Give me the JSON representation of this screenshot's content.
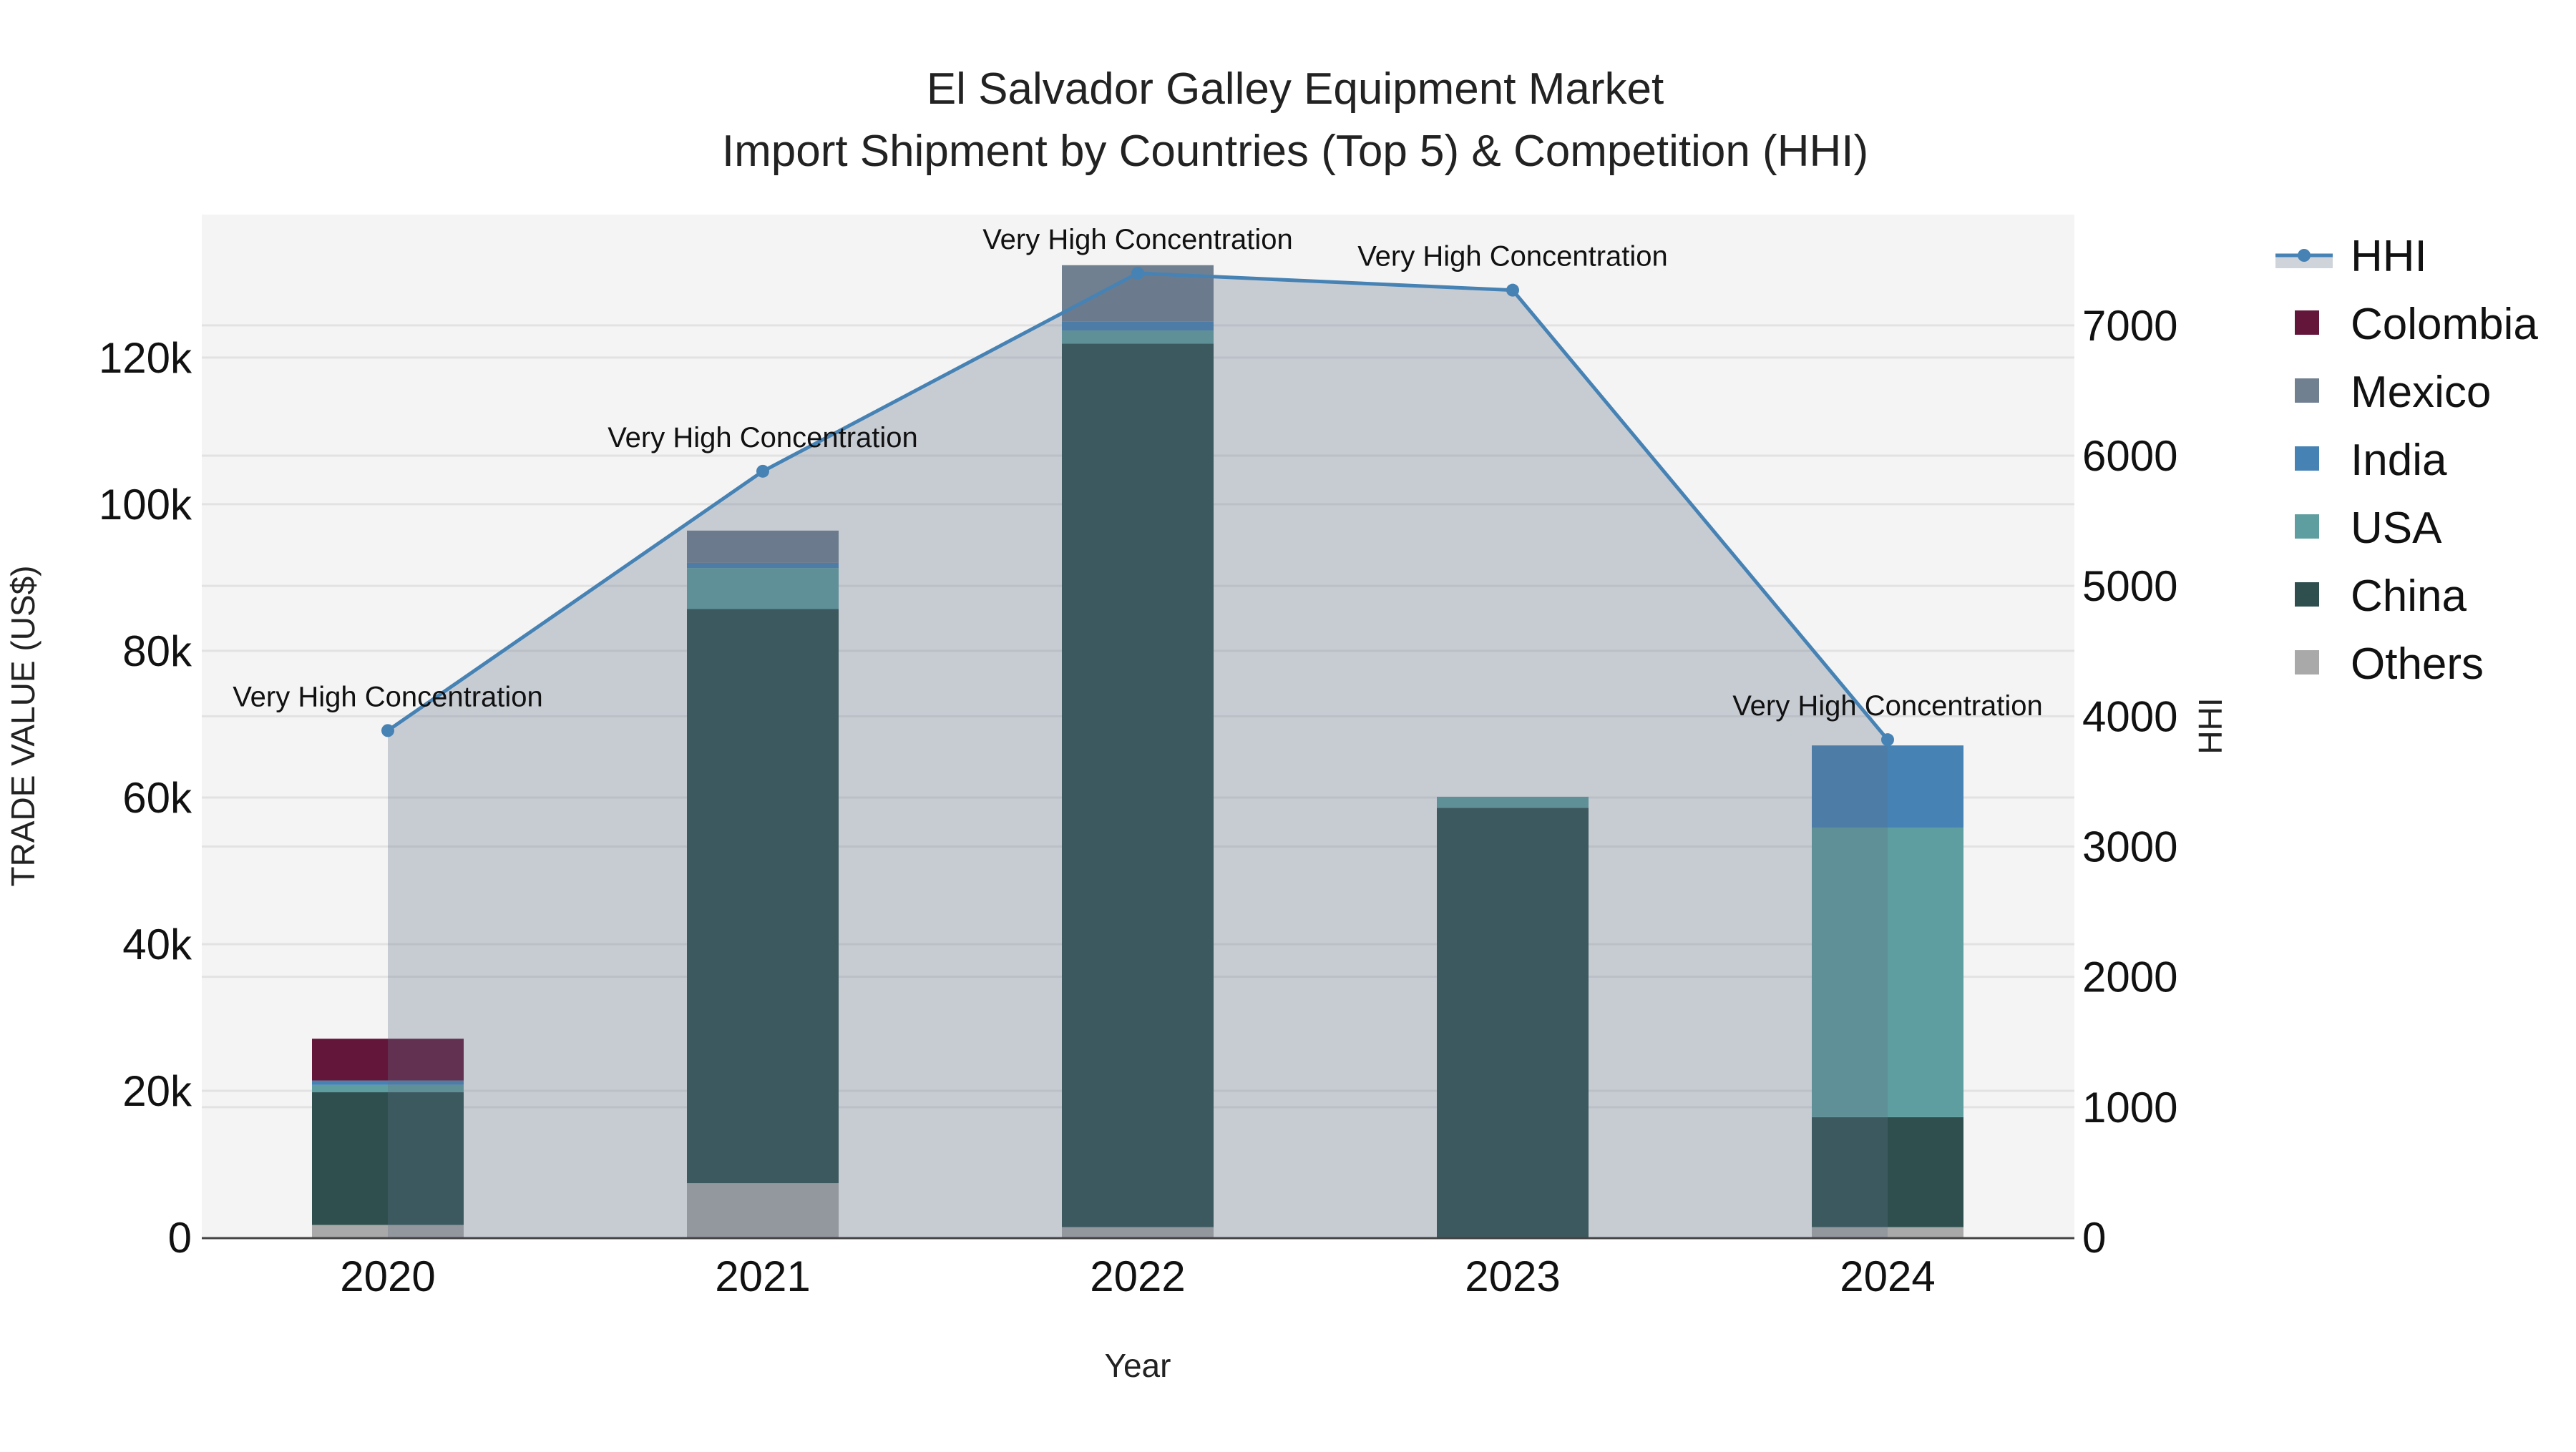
{
  "chart_data": {
    "type": "bar",
    "title": "El Salvador Galley Equipment Market",
    "subtitle": "Import Shipment by Countries (Top 5) & Competition (HHI)",
    "xlabel": "Year",
    "ylabel": "TRADE VALUE (US$)",
    "y2label": "HHI",
    "categories": [
      "2020",
      "2021",
      "2022",
      "2023",
      "2024"
    ],
    "stacked": true,
    "ylim": [
      0,
      139500
    ],
    "y2lim": [
      0,
      7850
    ],
    "yticks": [
      0,
      20000,
      40000,
      60000,
      80000,
      100000,
      120000
    ],
    "ytick_labels": [
      "0",
      "20k",
      "40k",
      "60k",
      "80k",
      "100k",
      "120k"
    ],
    "y2ticks": [
      0,
      1000,
      2000,
      3000,
      4000,
      5000,
      6000,
      7000
    ],
    "y2tick_labels": [
      "0",
      "1000",
      "2000",
      "3000",
      "4000",
      "5000",
      "6000",
      "7000"
    ],
    "series": [
      {
        "name": "Others",
        "color": "#a9a9a9",
        "values": [
          1700,
          7400,
          1400,
          0,
          1400
        ]
      },
      {
        "name": "China",
        "color": "#2f4f4f",
        "values": [
          18100,
          78300,
          120500,
          58600,
          15000
        ]
      },
      {
        "name": "USA",
        "color": "#5f9ea0",
        "values": [
          1000,
          5600,
          1800,
          1500,
          39500
        ]
      },
      {
        "name": "India",
        "color": "#4682b4",
        "values": [
          600,
          700,
          1200,
          0,
          11200
        ]
      },
      {
        "name": "Mexico",
        "color": "#708090",
        "values": [
          0,
          4400,
          7700,
          0,
          0
        ]
      },
      {
        "name": "Colombia",
        "color": "#63163a",
        "values": [
          5700,
          0,
          0,
          0,
          0
        ]
      }
    ],
    "line": {
      "name": "HHI",
      "color": "#4682b4",
      "axis": "right",
      "values": [
        3890,
        5880,
        7400,
        7270,
        3820
      ]
    },
    "annotations": [
      "Very High Concentration",
      "Very High Concentration",
      "Very High Concentration",
      "Very High Concentration",
      "Very High Concentration"
    ],
    "legend_order": [
      "HHI",
      "Colombia",
      "Mexico",
      "India",
      "USA",
      "China",
      "Others"
    ],
    "legend_position": "right",
    "grid": true
  }
}
